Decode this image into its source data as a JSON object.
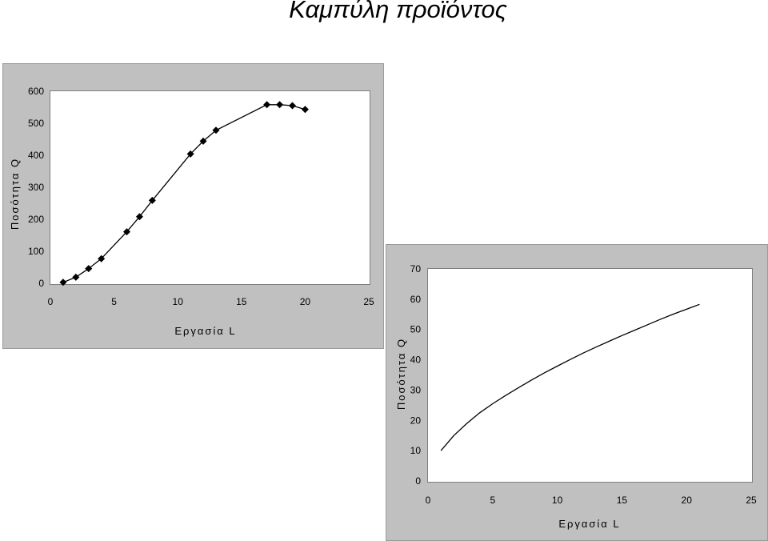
{
  "page": {
    "title": "Καμπύλη προϊόντος"
  },
  "chart_data": [
    {
      "type": "line",
      "markers": "diamond",
      "xlabel": "Εργασία L",
      "ylabel": "Ποσότητα Q",
      "xlim": [
        0,
        25
      ],
      "ylim": [
        0,
        600
      ],
      "xticks": [
        0,
        5,
        10,
        15,
        20,
        25
      ],
      "yticks": [
        0,
        100,
        200,
        300,
        400,
        500,
        600
      ],
      "grid": false,
      "x": [
        1,
        2,
        3,
        4,
        6,
        7,
        8,
        11,
        12,
        13,
        17,
        18,
        19,
        20
      ],
      "y": [
        3,
        19,
        46,
        77,
        161,
        208,
        259,
        404,
        444,
        478,
        558,
        558,
        555,
        543
      ],
      "colors": {
        "panel": "#c0c0c0",
        "plot": "#ffffff",
        "line": "#000000"
      }
    },
    {
      "type": "line",
      "markers": "none",
      "xlabel": "Εργασία L",
      "ylabel": "Ποσότητα Q",
      "xlim": [
        0,
        25
      ],
      "ylim": [
        0,
        70
      ],
      "xticks": [
        0,
        5,
        10,
        15,
        20,
        25
      ],
      "yticks": [
        0,
        10,
        20,
        30,
        40,
        50,
        60,
        70
      ],
      "grid": false,
      "x": [
        1,
        2,
        3,
        4,
        5,
        6,
        7,
        8,
        9,
        10,
        11,
        12,
        13,
        14,
        15,
        16,
        17,
        18,
        19,
        20,
        21
      ],
      "y": [
        10,
        15,
        19,
        22.5,
        25.5,
        28.2,
        30.8,
        33.3,
        35.7,
        37.9,
        40.1,
        42.2,
        44.2,
        46.1,
        48.0,
        49.8,
        51.6,
        53.4,
        55.1,
        56.7,
        58.3
      ],
      "colors": {
        "panel": "#c0c0c0",
        "plot": "#ffffff",
        "line": "#000000"
      }
    }
  ]
}
